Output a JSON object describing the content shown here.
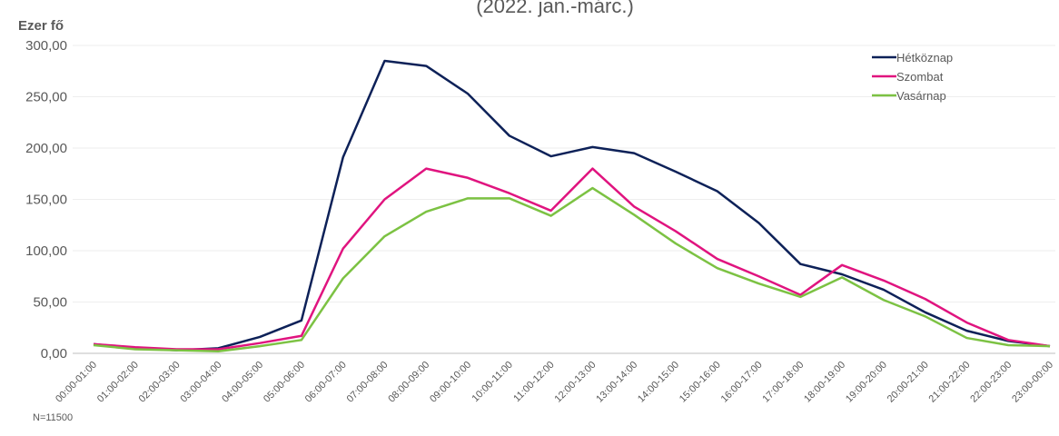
{
  "chart_data": {
    "type": "line",
    "subtitle": "(2022. jan.-márc.)",
    "y_label": "Ezer fő",
    "footnote": "N=11500",
    "categories": [
      "00:00-01:00",
      "01:00-02:00",
      "02:00-03:00",
      "03:00-04:00",
      "04:00-05:00",
      "05:00-06:00",
      "06:00-07:00",
      "07:00-08:00",
      "08:00-09:00",
      "09:00-10:00",
      "10:00-11:00",
      "11:00-12:00",
      "12:00-13:00",
      "13:00-14:00",
      "14:00-15:00",
      "15:00-16:00",
      "16:00-17:00",
      "17:00-18:00",
      "18:00-19:00",
      "19:00-20:00",
      "20:00-21:00",
      "21:00-22:00",
      "22:00-23:00",
      "23:00-00:00"
    ],
    "series": [
      {
        "name": "Hétköznap",
        "color": "#0d2158",
        "values": [
          9,
          5,
          3,
          5,
          16,
          32,
          191,
          285,
          280,
          253,
          212,
          192,
          201,
          195,
          177,
          158,
          127,
          87,
          77,
          62,
          40,
          22,
          12,
          7
        ]
      },
      {
        "name": "Szombat",
        "color": "#e0147f",
        "values": [
          9,
          6,
          4,
          4,
          10,
          17,
          102,
          150,
          180,
          171,
          156,
          139,
          180,
          143,
          119,
          92,
          75,
          57,
          86,
          71,
          53,
          30,
          13,
          7
        ]
      },
      {
        "name": "Vasárnap",
        "color": "#7cc243",
        "values": [
          8,
          4,
          3,
          2,
          7,
          13,
          73,
          114,
          138,
          151,
          151,
          134,
          161,
          135,
          107,
          83,
          68,
          55,
          74,
          52,
          36,
          15,
          8,
          7
        ]
      }
    ],
    "ylim": [
      0,
      300
    ],
    "yticks": [
      {
        "value": 0,
        "label": "0,00"
      },
      {
        "value": 50,
        "label": "50,00"
      },
      {
        "value": 100,
        "label": "100,00"
      },
      {
        "value": 150,
        "label": "150,00"
      },
      {
        "value": 200,
        "label": "200,00"
      },
      {
        "value": 250,
        "label": "250,00"
      },
      {
        "value": 300,
        "label": "300,00"
      }
    ],
    "grid": true,
    "legend": "top-right"
  }
}
